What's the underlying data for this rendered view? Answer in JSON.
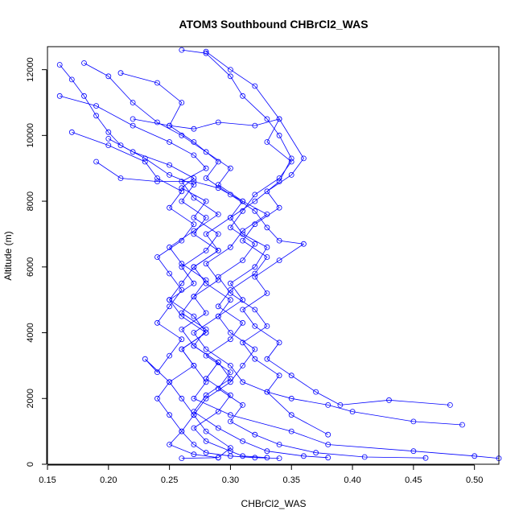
{
  "chart_data": {
    "type": "line",
    "title": "ATOM3 Southbound CHBrCl2_WAS",
    "xlabel": "CHBrCl2_WAS",
    "ylabel": "Altitude (m)",
    "xlim": [
      0.15,
      0.52
    ],
    "ylim": [
      0,
      12700
    ],
    "xticks": [
      "0.15",
      "0.20",
      "0.25",
      "0.30",
      "0.35",
      "0.40",
      "0.45",
      "0.50"
    ],
    "yticks": [
      "0",
      "2000",
      "4000",
      "6000",
      "8000",
      "10000",
      "12000"
    ],
    "grid": false,
    "color": "#0000ff",
    "series": [
      {
        "x": [
          0.16,
          0.17,
          0.18,
          0.19,
          0.2,
          0.21,
          0.23,
          0.25,
          0.27,
          0.26,
          0.28,
          0.27,
          0.29,
          0.27,
          0.26,
          0.25,
          0.27,
          0.28,
          0.26,
          0.27,
          0.28,
          0.27,
          0.3,
          0.35,
          0.38,
          0.45,
          0.5,
          0.52
        ],
        "y": [
          12150,
          11700,
          11200,
          10600,
          10100,
          9700,
          9300,
          8800,
          8500,
          8000,
          7500,
          7000,
          6500,
          6000,
          5500,
          5000,
          4500,
          4000,
          3500,
          3000,
          2500,
          2000,
          1500,
          1000,
          600,
          400,
          250,
          180
        ]
      },
      {
        "x": [
          0.18,
          0.2,
          0.22,
          0.24,
          0.26,
          0.28,
          0.3,
          0.29,
          0.31,
          0.3,
          0.28,
          0.29,
          0.27,
          0.28,
          0.3,
          0.29,
          0.27,
          0.28,
          0.3,
          0.31,
          0.33,
          0.35,
          0.38,
          0.4,
          0.45,
          0.49
        ],
        "y": [
          12200,
          11800,
          11000,
          10400,
          10000,
          9500,
          9000,
          8500,
          8000,
          7500,
          7000,
          6500,
          6000,
          5500,
          5000,
          4500,
          4000,
          3500,
          3000,
          2500,
          2200,
          2000,
          1800,
          1600,
          1300,
          1200
        ]
      },
      {
        "x": [
          0.26,
          0.28,
          0.3,
          0.31,
          0.33,
          0.34,
          0.35,
          0.34,
          0.32,
          0.3,
          0.31,
          0.33,
          0.32,
          0.3,
          0.31,
          0.29,
          0.3,
          0.32,
          0.31,
          0.3,
          0.28,
          0.27,
          0.28,
          0.3,
          0.29
        ],
        "y": [
          12600,
          12500,
          11800,
          11200,
          10500,
          10000,
          9300,
          8600,
          8000,
          7500,
          7000,
          6600,
          6000,
          5500,
          5000,
          4500,
          4000,
          3500,
          3000,
          2500,
          2000,
          1500,
          1000,
          500,
          200
        ]
      },
      {
        "x": [
          0.21,
          0.24,
          0.26,
          0.25,
          0.27,
          0.29,
          0.28,
          0.3,
          0.32,
          0.33,
          0.34,
          0.36,
          0.34,
          0.32,
          0.33,
          0.31,
          0.32,
          0.34,
          0.33,
          0.35,
          0.37,
          0.39,
          0.43,
          0.48
        ],
        "y": [
          11900,
          11600,
          11000,
          10300,
          9800,
          9200,
          8700,
          8200,
          7700,
          7200,
          6800,
          6700,
          6200,
          5700,
          5200,
          4700,
          4200,
          3700,
          3200,
          2700,
          2200,
          1800,
          1950,
          1800
        ]
      },
      {
        "x": [
          0.16,
          0.19,
          0.22,
          0.25,
          0.27,
          0.28,
          0.26,
          0.27,
          0.29,
          0.27,
          0.25,
          0.26,
          0.28,
          0.27,
          0.26,
          0.28,
          0.27,
          0.29,
          0.3,
          0.28,
          0.27,
          0.29,
          0.31,
          0.33,
          0.36,
          0.38
        ],
        "y": [
          11200,
          10900,
          10300,
          9800,
          9400,
          9000,
          8600,
          8100,
          7600,
          7100,
          6600,
          6100,
          5600,
          5100,
          4600,
          4100,
          3600,
          3100,
          2600,
          2100,
          1600,
          1100,
          700,
          400,
          250,
          200
        ]
      },
      {
        "x": [
          0.28,
          0.3,
          0.32,
          0.34,
          0.36,
          0.35,
          0.33,
          0.34,
          0.32,
          0.31,
          0.33,
          0.32,
          0.3,
          0.29,
          0.31,
          0.3,
          0.28,
          0.3,
          0.29,
          0.31,
          0.3,
          0.32,
          0.34,
          0.37,
          0.41,
          0.46
        ],
        "y": [
          12550,
          12000,
          11500,
          10500,
          9300,
          8800,
          8300,
          7800,
          7300,
          6800,
          6300,
          5800,
          5300,
          4800,
          4300,
          3800,
          3300,
          2800,
          2300,
          1800,
          1300,
          900,
          600,
          350,
          220,
          190
        ]
      },
      {
        "x": [
          0.17,
          0.2,
          0.23,
          0.24,
          0.26,
          0.25,
          0.27,
          0.26,
          0.24,
          0.25,
          0.26,
          0.25,
          0.24,
          0.26,
          0.25,
          0.24,
          0.23,
          0.25,
          0.24,
          0.25,
          0.26,
          0.27,
          0.28,
          0.3,
          0.32,
          0.34
        ],
        "y": [
          10100,
          9700,
          9200,
          8700,
          8300,
          7800,
          7300,
          6800,
          6300,
          5800,
          5300,
          4800,
          4300,
          3800,
          3300,
          2800,
          3200,
          2500,
          2000,
          1500,
          1000,
          600,
          350,
          250,
          200,
          180
        ]
      },
      {
        "x": [
          0.19,
          0.21,
          0.24,
          0.27,
          0.29,
          0.31,
          0.33,
          0.31,
          0.3,
          0.28,
          0.29,
          0.27,
          0.28,
          0.26,
          0.27,
          0.29,
          0.28,
          0.3,
          0.29,
          0.27,
          0.28,
          0.3,
          0.31,
          0.33
        ],
        "y": [
          9200,
          8700,
          8600,
          8600,
          8400,
          8000,
          7600,
          7100,
          6600,
          6100,
          5600,
          5100,
          4600,
          4100,
          3600,
          3100,
          2600,
          2100,
          1600,
          1100,
          700,
          400,
          250,
          200
        ]
      },
      {
        "x": [
          0.22,
          0.25,
          0.27,
          0.29,
          0.32,
          0.34,
          0.33,
          0.35,
          0.34,
          0.32,
          0.31,
          0.3,
          0.32,
          0.31,
          0.29,
          0.3,
          0.32,
          0.33,
          0.31,
          0.32,
          0.34,
          0.33,
          0.35,
          0.38
        ],
        "y": [
          10500,
          10300,
          10200,
          10400,
          10300,
          10500,
          9800,
          9200,
          8700,
          8200,
          7700,
          7200,
          6700,
          6200,
          5700,
          5200,
          4700,
          4200,
          3700,
          3200,
          2700,
          2200,
          1500,
          900
        ]
      },
      {
        "x": [
          0.2,
          0.22,
          0.25,
          0.27,
          0.26,
          0.28,
          0.27,
          0.29,
          0.28,
          0.26,
          0.27,
          0.25,
          0.26,
          0.28,
          0.26,
          0.27,
          0.25,
          0.26,
          0.27,
          0.26,
          0.25,
          0.27,
          0.29,
          0.26
        ],
        "y": [
          9900,
          9500,
          9100,
          8700,
          8400,
          8000,
          7500,
          7000,
          6500,
          6000,
          5500,
          5000,
          4500,
          4000,
          3500,
          3000,
          2500,
          2000,
          1500,
          1000,
          600,
          300,
          200,
          180
        ]
      }
    ]
  }
}
